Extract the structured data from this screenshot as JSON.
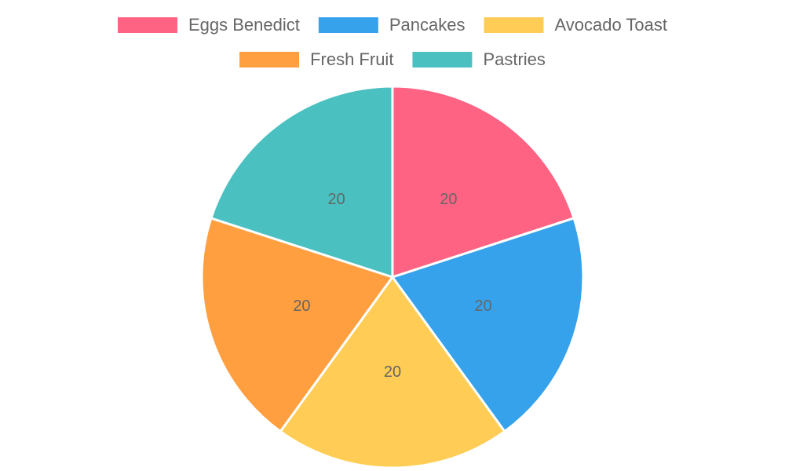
{
  "chart_data": {
    "type": "pie",
    "categories": [
      "Eggs Benedict",
      "Pancakes",
      "Avocado Toast",
      "Fresh Fruit",
      "Pastries"
    ],
    "values": [
      20,
      20,
      20,
      20,
      20
    ],
    "colors": [
      "#ff6384",
      "#36a2eb",
      "#ffcd56",
      "#ff9f40",
      "#4bc0c0"
    ],
    "legend": "top"
  }
}
